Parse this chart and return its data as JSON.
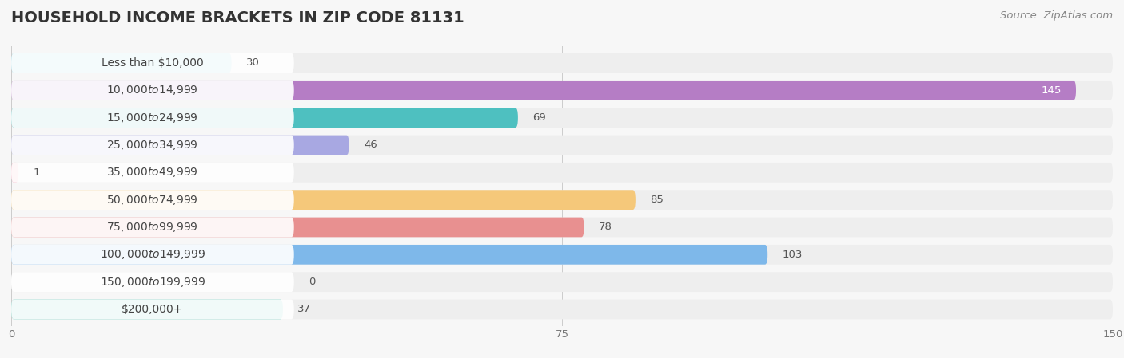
{
  "title": "HOUSEHOLD INCOME BRACKETS IN ZIP CODE 81131",
  "source": "Source: ZipAtlas.com",
  "categories": [
    "Less than $10,000",
    "$10,000 to $14,999",
    "$15,000 to $24,999",
    "$25,000 to $34,999",
    "$35,000 to $49,999",
    "$50,000 to $74,999",
    "$75,000 to $99,999",
    "$100,000 to $149,999",
    "$150,000 to $199,999",
    "$200,000+"
  ],
  "values": [
    30,
    145,
    69,
    46,
    1,
    85,
    78,
    103,
    0,
    37
  ],
  "bar_colors": [
    "#82cfe0",
    "#b57dc5",
    "#4ec0c0",
    "#a8a8e2",
    "#f4a0b5",
    "#f5c87a",
    "#e89090",
    "#7eb8ea",
    "#c8a8d8",
    "#5ec8b8"
  ],
  "xlim": [
    0,
    150
  ],
  "xticks": [
    0,
    75,
    150
  ],
  "background_color": "#f7f7f7",
  "row_bg_color": "#eeeeee",
  "title_fontsize": 14,
  "label_fontsize": 10,
  "value_fontsize": 9.5,
  "source_fontsize": 9.5
}
